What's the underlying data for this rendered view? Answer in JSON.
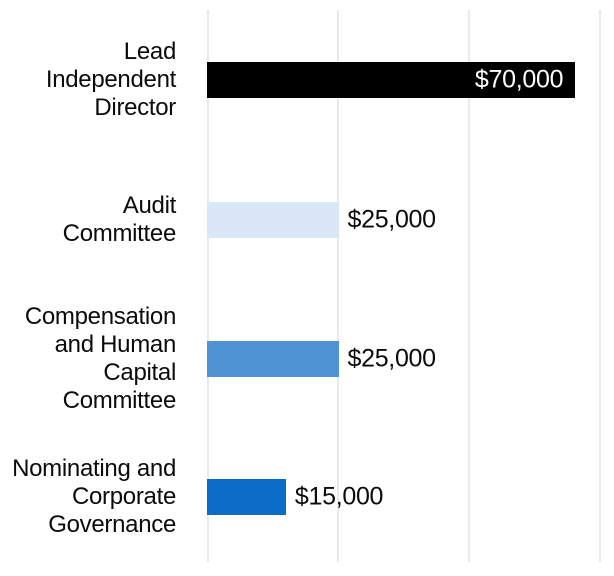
{
  "chart_data": {
    "type": "bar",
    "orientation": "horizontal",
    "title": "",
    "xlabel": "",
    "ylabel": "",
    "categories": [
      "Lead Independent Director",
      "Audit Committee",
      "Compensation and Human Capital Committee",
      "Nominating and Corporate Governance"
    ],
    "values": [
      70000,
      25000,
      25000,
      15000
    ],
    "value_labels": [
      "$70,000",
      "$25,000",
      "$25,000",
      "$15,000"
    ],
    "bar_colors": [
      "#000000",
      "#d9e7f6",
      "#4f93d4",
      "#0a6cc4"
    ],
    "value_label_colors": [
      "#ffffff",
      "#0b0b0b",
      "#0b0b0b",
      "#0b0b0b"
    ],
    "value_label_inside": [
      true,
      false,
      false,
      false
    ],
    "xlim": [
      0,
      75000
    ],
    "grid": true,
    "gridline_interval": 25000,
    "gridline_color": "#e9e9e9",
    "background": "#ffffff",
    "legend": false
  },
  "rows": [
    {
      "label": [
        "Lead",
        "Independent",
        "Director"
      ],
      "value_label": "$70,000"
    },
    {
      "label": [
        "Audit",
        "Committee"
      ],
      "value_label": "$25,000"
    },
    {
      "label": [
        "Compensation",
        "and Human",
        "Capital",
        "Committee"
      ],
      "value_label": "$25,000"
    },
    {
      "label": [
        "Nominating and",
        "Corporate",
        "Governance"
      ],
      "value_label": "$15,000"
    }
  ]
}
